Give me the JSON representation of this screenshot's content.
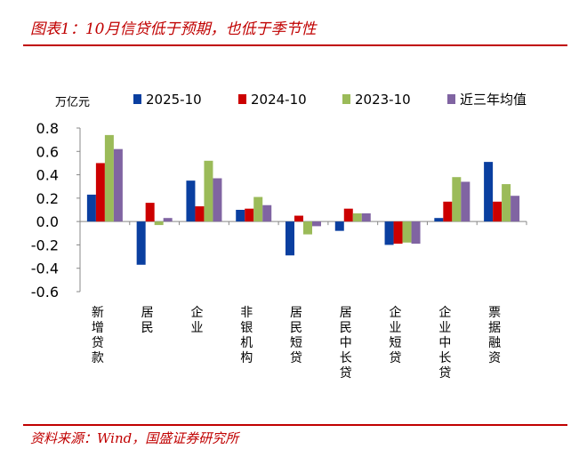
{
  "title": "图表1：10月信贷低于预期，也低于季节性",
  "source": "资料来源：Wind，国盛证券研究所",
  "chart_data": {
    "type": "bar",
    "unit_label": "万亿元",
    "categories": [
      "新增贷款",
      "居民",
      "企业",
      "非银机构",
      "居民短贷",
      "居民中长贷",
      "企业短贷",
      "企业中长贷",
      "票据融资"
    ],
    "series": [
      {
        "name": "2025-10",
        "color": "#0a3fa0",
        "values": [
          0.23,
          -0.37,
          0.35,
          0.1,
          -0.29,
          -0.08,
          -0.2,
          0.03,
          0.51
        ]
      },
      {
        "name": "2024-10",
        "color": "#cc0000",
        "values": [
          0.5,
          0.16,
          0.13,
          0.11,
          0.05,
          0.11,
          -0.19,
          0.17,
          0.17
        ]
      },
      {
        "name": "2023-10",
        "color": "#9bbb59",
        "values": [
          0.74,
          -0.03,
          0.52,
          0.21,
          -0.11,
          0.07,
          -0.18,
          0.38,
          0.32
        ]
      },
      {
        "name": "近三年均值",
        "color": "#8064a2",
        "values": [
          0.62,
          0.03,
          0.37,
          0.14,
          -0.04,
          0.07,
          -0.19,
          0.34,
          0.22
        ]
      }
    ],
    "ylim": [
      -0.6,
      0.8
    ],
    "yticks": [
      "0.8",
      "0.6",
      "0.4",
      "0.2",
      "0.0",
      "-0.2",
      "-0.4",
      "-0.6"
    ],
    "legend_position": "top",
    "grid": false
  }
}
